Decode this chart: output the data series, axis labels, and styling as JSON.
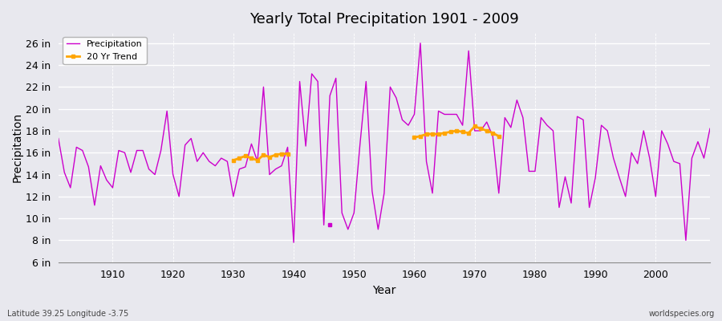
{
  "title": "Yearly Total Precipitation 1901 - 2009",
  "xlabel": "Year",
  "ylabel": "Precipitation",
  "footnote_left": "Latitude 39.25 Longitude -3.75",
  "footnote_right": "worldspecies.org",
  "ylim": [
    6,
    27
  ],
  "yticks": [
    6,
    8,
    10,
    12,
    14,
    16,
    18,
    20,
    22,
    24,
    26
  ],
  "ytick_labels": [
    "6 in",
    "8 in",
    "10 in",
    "12 in",
    "14 in",
    "16 in",
    "18 in",
    "20 in",
    "22 in",
    "24 in",
    "26 in"
  ],
  "xlim": [
    1901,
    2009
  ],
  "xticks": [
    1910,
    1920,
    1930,
    1940,
    1950,
    1960,
    1970,
    1980,
    1990,
    2000
  ],
  "precip_color": "#CC00CC",
  "trend_color": "#FFA500",
  "background_color": "#E8E8EE",
  "grid_color": "#FFFFFF",
  "years": [
    1901,
    1902,
    1903,
    1904,
    1905,
    1906,
    1907,
    1908,
    1909,
    1910,
    1911,
    1912,
    1913,
    1914,
    1915,
    1916,
    1917,
    1918,
    1919,
    1920,
    1921,
    1922,
    1923,
    1924,
    1925,
    1926,
    1927,
    1928,
    1929,
    1930,
    1931,
    1932,
    1933,
    1934,
    1935,
    1936,
    1937,
    1938,
    1939,
    1940,
    1941,
    1942,
    1943,
    1944,
    1945,
    1946,
    1947,
    1948,
    1949,
    1950,
    1951,
    1952,
    1953,
    1954,
    1955,
    1956,
    1957,
    1958,
    1959,
    1960,
    1961,
    1962,
    1963,
    1964,
    1965,
    1966,
    1967,
    1968,
    1969,
    1970,
    1971,
    1972,
    1973,
    1974,
    1975,
    1976,
    1977,
    1978,
    1979,
    1980,
    1981,
    1982,
    1983,
    1984,
    1985,
    1986,
    1987,
    1988,
    1989,
    1990,
    1991,
    1992,
    1993,
    1994,
    1995,
    1996,
    1997,
    1998,
    1999,
    2000,
    2001,
    2002,
    2003,
    2004,
    2005,
    2006,
    2007,
    2008,
    2009
  ],
  "precip": [
    17.3,
    14.2,
    12.8,
    16.5,
    16.2,
    14.7,
    11.2,
    14.8,
    13.5,
    12.8,
    16.2,
    16.0,
    14.2,
    16.2,
    16.2,
    14.5,
    14.0,
    16.2,
    19.8,
    14.0,
    12.0,
    16.7,
    17.3,
    15.2,
    16.0,
    15.2,
    14.8,
    15.5,
    15.2,
    12.0,
    14.5,
    14.7,
    16.8,
    15.2,
    22.0,
    14.0,
    14.5,
    14.8,
    16.5,
    7.8,
    22.5,
    16.6,
    23.2,
    22.5,
    9.4,
    21.2,
    22.8,
    10.5,
    9.0,
    10.5,
    16.8,
    22.5,
    12.5,
    9.0,
    12.3,
    22.0,
    21.0,
    19.0,
    18.5,
    19.5,
    26.0,
    15.2,
    12.3,
    19.8,
    19.5,
    19.5,
    19.5,
    18.5,
    25.3,
    18.0,
    18.0,
    18.8,
    17.5,
    12.3,
    19.2,
    18.3,
    20.8,
    19.2,
    14.3,
    14.3,
    19.2,
    18.5,
    18.0,
    11.0,
    13.8,
    11.4,
    19.3,
    19.0,
    11.0,
    13.7,
    18.5,
    18.0,
    15.5,
    13.7,
    12.0,
    16.0,
    15.0,
    18.0,
    15.5,
    12.0,
    18.0,
    16.8,
    15.2,
    15.0,
    8.0,
    15.5,
    17.0,
    15.5,
    18.2
  ],
  "trend_segment1_years": [
    1930,
    1931,
    1932,
    1933,
    1934,
    1935,
    1936,
    1937,
    1938,
    1939
  ],
  "trend_segment1_values": [
    15.3,
    15.5,
    15.7,
    15.5,
    15.3,
    15.8,
    15.6,
    15.8,
    15.9,
    15.9
  ],
  "trend_segment2_years": [
    1960,
    1961,
    1962,
    1963,
    1964,
    1965,
    1966,
    1967,
    1968,
    1969,
    1970,
    1971,
    1972,
    1973,
    1974
  ],
  "trend_segment2_values": [
    17.4,
    17.5,
    17.7,
    17.7,
    17.7,
    17.8,
    17.9,
    18.0,
    17.9,
    17.8,
    18.4,
    18.2,
    18.0,
    17.8,
    17.5
  ],
  "isolated_point_year": 1946,
  "isolated_point_value": 9.4
}
